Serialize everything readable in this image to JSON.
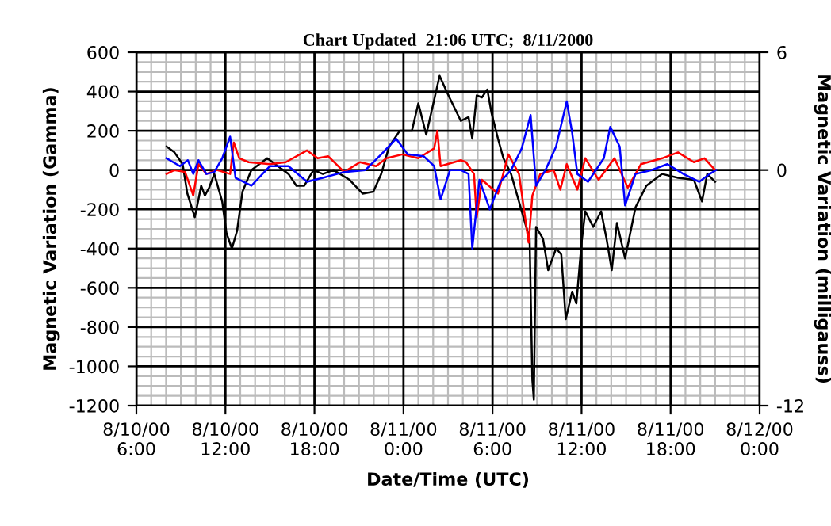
{
  "chart_data": {
    "type": "line",
    "title": "Chart Updated  21:06 UTC;  8/11/2000",
    "xlabel": "Date/Time (UTC)",
    "ylabel": "Magnetic Variation (Gamma)",
    "y2label": "Magnetic Variation (milligauss)",
    "xlim": [
      "2000-08-10T06:00",
      "2000-08-12T00:00"
    ],
    "xticks": [
      {
        "value": "2000-08-10T06:00",
        "label": "8/10/00\n6:00"
      },
      {
        "value": "2000-08-10T12:00",
        "label": "8/10/00\n12:00"
      },
      {
        "value": "2000-08-10T18:00",
        "label": "8/10/00\n18:00"
      },
      {
        "value": "2000-08-11T00:00",
        "label": "8/11/00\n0:00"
      },
      {
        "value": "2000-08-11T06:00",
        "label": "8/11/00\n6:00"
      },
      {
        "value": "2000-08-11T12:00",
        "label": "8/11/00\n12:00"
      },
      {
        "value": "2000-08-11T18:00",
        "label": "8/11/00\n18:00"
      },
      {
        "value": "2000-08-12T00:00",
        "label": "8/12/00\n0:00"
      }
    ],
    "ylim": [
      -1200,
      600
    ],
    "yticks": [
      -1200,
      -1000,
      -800,
      -600,
      -400,
      -200,
      0,
      200,
      400,
      600
    ],
    "y2lim": [
      -12,
      6
    ],
    "y2ticks": [
      -12,
      0,
      6
    ],
    "grid": true,
    "legend": false,
    "marker": "none",
    "line_style": "solid",
    "series": [
      {
        "color": "#000000",
        "x": [
          "2000-08-10T08:02",
          "2000-08-10T08:34",
          "2000-08-10T09:07",
          "2000-08-10T09:26",
          "2000-08-10T09:56",
          "2000-08-10T10:11",
          "2000-08-10T10:22",
          "2000-08-10T10:37",
          "2000-08-10T10:54",
          "2000-08-10T11:15",
          "2000-08-10T11:47",
          "2000-08-10T12:04",
          "2000-08-10T12:26",
          "2000-08-10T12:47",
          "2000-08-10T13:09",
          "2000-08-10T13:45",
          "2000-08-10T14:49",
          "2000-08-10T15:32",
          "2000-08-10T16:15",
          "2000-08-10T16:47",
          "2000-08-10T17:19",
          "2000-08-10T17:56",
          "2000-08-10T18:34",
          "2000-08-10T19:17",
          "2000-08-10T20:22",
          "2000-08-10T21:15",
          "2000-08-10T21:58",
          "2000-08-10T22:30",
          "2000-08-10T23:02",
          "2000-08-10T23:45",
          "2000-08-11T00:34",
          "2000-08-11T01:00",
          "2000-08-11T01:32",
          "2000-08-11T02:26",
          "2000-08-11T02:58",
          "2000-08-11T03:52",
          "2000-08-11T04:23",
          "2000-08-11T04:38",
          "2000-08-11T04:56",
          "2000-08-11T05:17",
          "2000-08-11T05:39",
          "2000-08-11T05:56",
          "2000-08-11T06:22",
          "2000-08-11T06:44",
          "2000-08-11T07:15",
          "2000-08-11T07:58",
          "2000-08-11T08:30",
          "2000-08-11T08:41",
          "2000-08-11T08:47",
          "2000-08-11T08:56",
          "2000-08-11T09:24",
          "2000-08-11T09:45",
          "2000-08-11T10:17",
          "2000-08-11T10:38",
          "2000-08-11T10:56",
          "2000-08-11T11:22",
          "2000-08-11T11:39",
          "2000-08-11T12:00",
          "2000-08-11T12:15",
          "2000-08-11T12:47",
          "2000-08-11T13:19",
          "2000-08-11T13:41",
          "2000-08-11T14:02",
          "2000-08-11T14:23",
          "2000-08-11T14:56",
          "2000-08-11T15:38",
          "2000-08-11T16:22",
          "2000-08-11T17:26",
          "2000-08-11T18:30",
          "2000-08-11T19:34",
          "2000-08-11T20:07",
          "2000-08-11T20:28",
          "2000-08-11T21:00"
        ],
        "values": [
          120,
          90,
          30,
          -120,
          -240,
          -150,
          -80,
          -130,
          -90,
          -20,
          -160,
          -320,
          -400,
          -310,
          -110,
          0,
          60,
          20,
          -20,
          -80,
          -80,
          0,
          -20,
          0,
          -50,
          -120,
          -110,
          -20,
          120,
          200,
          200,
          340,
          180,
          480,
          390,
          250,
          270,
          160,
          380,
          370,
          410,
          290,
          160,
          60,
          -20,
          -210,
          -350,
          -1070,
          -1170,
          -290,
          -350,
          -510,
          -400,
          -430,
          -760,
          -620,
          -680,
          -370,
          -210,
          -290,
          -210,
          -350,
          -510,
          -270,
          -450,
          -190,
          -80,
          -20,
          -40,
          -50,
          -160,
          -20,
          -60
        ]
      },
      {
        "color": "#ff0000",
        "x": [
          "2000-08-10T08:02",
          "2000-08-10T08:34",
          "2000-08-10T09:17",
          "2000-08-10T09:50",
          "2000-08-10T10:11",
          "2000-08-10T10:43",
          "2000-08-10T11:26",
          "2000-08-10T12:19",
          "2000-08-10T12:34",
          "2000-08-10T12:56",
          "2000-08-10T13:34",
          "2000-08-10T15:00",
          "2000-08-10T16:04",
          "2000-08-10T17:30",
          "2000-08-10T18:13",
          "2000-08-10T18:56",
          "2000-08-10T20:00",
          "2000-08-10T21:04",
          "2000-08-10T22:09",
          "2000-08-10T22:51",
          "2000-08-10T23:56",
          "2000-08-11T01:00",
          "2000-08-11T02:04",
          "2000-08-11T02:17",
          "2000-08-11T02:30",
          "2000-08-11T03:52",
          "2000-08-11T04:13",
          "2000-08-11T04:45",
          "2000-08-11T04:56",
          "2000-08-11T05:17",
          "2000-08-11T06:22",
          "2000-08-11T07:04",
          "2000-08-11T07:47",
          "2000-08-11T08:26",
          "2000-08-11T08:41",
          "2000-08-11T09:13",
          "2000-08-11T10:07",
          "2000-08-11T10:34",
          "2000-08-11T11:00",
          "2000-08-11T11:43",
          "2000-08-11T12:15",
          "2000-08-11T13:09",
          "2000-08-11T14:13",
          "2000-08-11T15:07",
          "2000-08-11T16:00",
          "2000-08-11T17:26",
          "2000-08-11T18:30",
          "2000-08-11T19:34",
          "2000-08-11T20:17",
          "2000-08-11T21:00"
        ],
        "values": [
          -20,
          0,
          -10,
          -130,
          30,
          -20,
          0,
          -20,
          140,
          60,
          40,
          30,
          40,
          100,
          60,
          70,
          -10,
          40,
          20,
          60,
          80,
          60,
          110,
          200,
          20,
          50,
          40,
          -20,
          -240,
          -50,
          -120,
          80,
          -20,
          -370,
          -130,
          -20,
          0,
          -100,
          30,
          -100,
          60,
          -50,
          60,
          -90,
          30,
          60,
          90,
          40,
          60,
          0
        ]
      },
      {
        "color": "#0000ff",
        "x": [
          "2000-08-10T08:02",
          "2000-08-10T08:56",
          "2000-08-10T09:28",
          "2000-08-10T09:50",
          "2000-08-10T10:11",
          "2000-08-10T10:43",
          "2000-08-10T11:15",
          "2000-08-10T11:47",
          "2000-08-10T12:19",
          "2000-08-10T12:41",
          "2000-08-10T13:45",
          "2000-08-10T15:00",
          "2000-08-10T16:15",
          "2000-08-10T17:30",
          "2000-08-10T18:34",
          "2000-08-10T20:00",
          "2000-08-10T21:26",
          "2000-08-10T22:30",
          "2000-08-10T23:30",
          "2000-08-11T00:17",
          "2000-08-11T01:22",
          "2000-08-11T02:04",
          "2000-08-11T02:30",
          "2000-08-11T03:08",
          "2000-08-11T03:52",
          "2000-08-11T04:23",
          "2000-08-11T04:38",
          "2000-08-11T05:07",
          "2000-08-11T05:49",
          "2000-08-11T06:32",
          "2000-08-11T07:15",
          "2000-08-11T07:58",
          "2000-08-11T08:34",
          "2000-08-11T08:56",
          "2000-08-11T09:34",
          "2000-08-11T10:17",
          "2000-08-11T11:00",
          "2000-08-11T11:22",
          "2000-08-11T11:43",
          "2000-08-11T12:26",
          "2000-08-11T13:30",
          "2000-08-11T13:56",
          "2000-08-11T14:34",
          "2000-08-11T14:56",
          "2000-08-11T15:38",
          "2000-08-11T16:43",
          "2000-08-11T17:47",
          "2000-08-11T18:52",
          "2000-08-11T19:56",
          "2000-08-11T20:38",
          "2000-08-11T21:04"
        ],
        "values": [
          60,
          20,
          50,
          -20,
          50,
          -20,
          -10,
          60,
          170,
          -40,
          -80,
          20,
          20,
          -60,
          -40,
          -10,
          0,
          80,
          160,
          80,
          70,
          20,
          -150,
          0,
          0,
          -20,
          -400,
          -50,
          -200,
          -60,
          0,
          110,
          280,
          -80,
          0,
          120,
          350,
          190,
          -20,
          -60,
          60,
          220,
          120,
          -180,
          -20,
          0,
          30,
          -20,
          -60,
          -20,
          0
        ]
      }
    ]
  }
}
